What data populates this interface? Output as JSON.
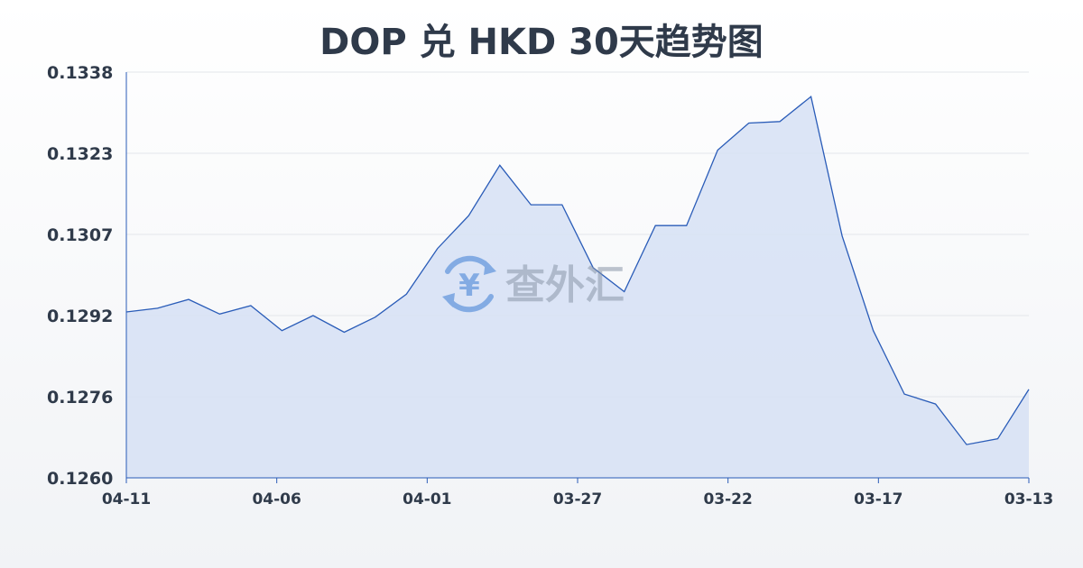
{
  "chart_data": {
    "type": "area",
    "title": "DOP 兑 HKD 30天趋势图",
    "xlabel": "",
    "ylabel": "",
    "y_ticks": [
      "0.1338",
      "0.1323",
      "0.1307",
      "0.1292",
      "0.1276",
      "0.1260"
    ],
    "ylim": [
      0.126,
      0.1338
    ],
    "x_tick_labels": [
      "04-11",
      "04-06",
      "04-01",
      "03-27",
      "03-22",
      "03-17",
      "03-13"
    ],
    "grid": true,
    "legend": "none",
    "series": [
      {
        "values": [
          0.12919,
          0.12926,
          0.12943,
          0.12915,
          0.12931,
          0.12883,
          0.12912,
          0.1288,
          0.12909,
          0.12953,
          0.13041,
          0.13104,
          0.13201,
          0.13125,
          0.13125,
          0.13004,
          0.12958,
          0.13085,
          0.13085,
          0.1323,
          0.13282,
          0.13285,
          0.13333,
          0.13065,
          0.12883,
          0.12761,
          0.12742,
          0.12664,
          0.12675,
          0.1277
        ]
      }
    ],
    "colors": {
      "line": "#2a5cb8",
      "fill": "#d6e0f5",
      "grid": "#e3e6eb"
    }
  },
  "watermark": {
    "text": "查外汇",
    "icon": "yen-exchange-icon"
  }
}
